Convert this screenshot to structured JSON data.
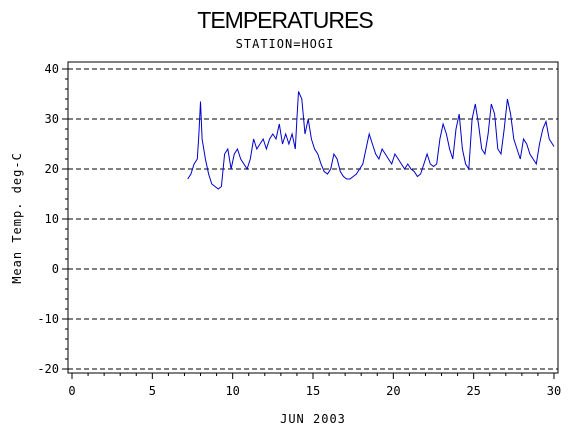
{
  "chart_data": {
    "type": "line",
    "title": "TEMPERATURES",
    "subtitle": "STATION=HOGI",
    "xlabel": "JUN 2003",
    "ylabel": "Mean Temp. deg-C",
    "xlim": [
      0,
      30
    ],
    "ylim": [
      -20,
      40
    ],
    "xticks": [
      0,
      5,
      10,
      15,
      20,
      25,
      30
    ],
    "yticks": [
      -20,
      -10,
      0,
      10,
      20,
      30,
      40
    ],
    "grid": "horizontal-dashed",
    "color": "#0000cc",
    "series": [
      {
        "x": [
          7.2,
          7.4,
          7.6,
          7.8,
          7.9,
          8.0,
          8.1,
          8.3,
          8.5,
          8.7,
          8.9,
          9.1,
          9.3,
          9.5,
          9.7,
          9.9,
          10.1,
          10.3,
          10.5,
          10.7,
          10.9,
          11.1,
          11.3,
          11.5,
          11.7,
          11.9,
          12.1,
          12.3,
          12.5,
          12.7,
          12.9,
          13.1,
          13.3,
          13.5,
          13.7,
          13.9,
          14.0,
          14.1,
          14.3,
          14.5,
          14.7,
          14.9,
          15.1,
          15.3,
          15.5,
          15.7,
          15.9,
          16.1,
          16.3,
          16.5,
          16.7,
          16.9,
          17.1,
          17.3,
          17.5,
          17.7,
          17.9,
          18.1,
          18.3,
          18.5,
          18.7,
          18.9,
          19.1,
          19.3,
          19.5,
          19.7,
          19.9,
          20.1,
          20.3,
          20.5,
          20.7,
          20.9,
          21.1,
          21.3,
          21.5,
          21.7,
          21.9,
          22.1,
          22.3,
          22.5,
          22.7,
          22.9,
          23.1,
          23.3,
          23.5,
          23.7,
          23.9,
          24.1,
          24.3,
          24.5,
          24.7,
          24.9,
          25.1,
          25.3,
          25.5,
          25.7,
          25.9,
          26.1,
          26.3,
          26.5,
          26.7,
          26.9,
          27.1,
          27.3,
          27.5,
          27.7,
          27.9,
          28.1,
          28.3,
          28.5,
          28.7,
          28.9,
          29.1,
          29.3,
          29.5,
          29.7,
          29.9,
          30.0
        ],
        "values": [
          18,
          19,
          21,
          22,
          27,
          33.5,
          26,
          22,
          19,
          17,
          16.5,
          16,
          16.5,
          23,
          24,
          20,
          23,
          24,
          22,
          21,
          20,
          22,
          26,
          24,
          25,
          26,
          24,
          26,
          27,
          26,
          29,
          25,
          27,
          25,
          27,
          24,
          30,
          35.5,
          34,
          27,
          30,
          26,
          24,
          23,
          21,
          19.5,
          19,
          20,
          23,
          22,
          19.5,
          18.5,
          18,
          18,
          18.5,
          19,
          20,
          21,
          24,
          27,
          25,
          23,
          22,
          24,
          23,
          22,
          21,
          23,
          22,
          21,
          20,
          21,
          20,
          19.5,
          18.5,
          19,
          21,
          23,
          21,
          20.5,
          21,
          26,
          29,
          27,
          24,
          22,
          28,
          31,
          24,
          21,
          20,
          30,
          33,
          29,
          24,
          23,
          27,
          33,
          31,
          24,
          23,
          28,
          34,
          31,
          26,
          24,
          22,
          26,
          25,
          23,
          22,
          21,
          25,
          28,
          29.5,
          26,
          25,
          24.5
        ]
      }
    ]
  }
}
